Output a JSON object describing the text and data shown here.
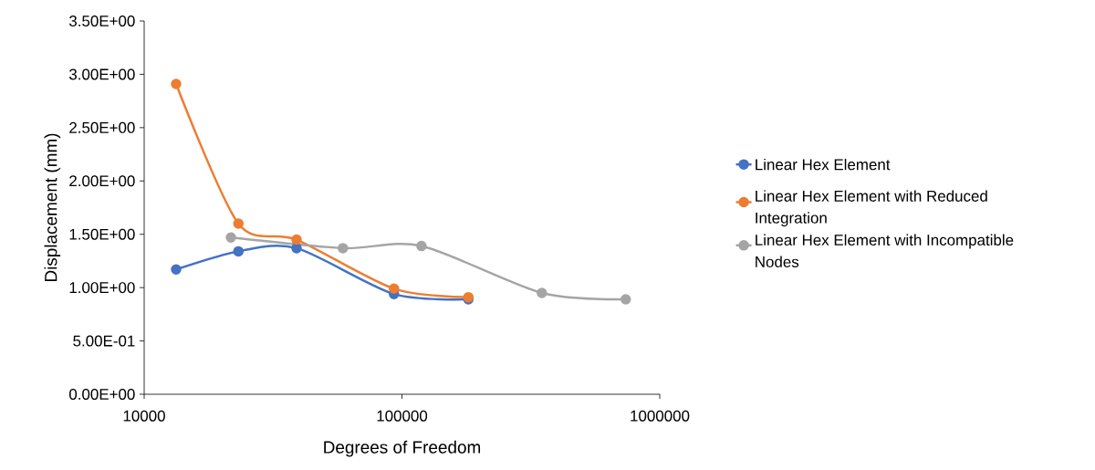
{
  "chart_data": {
    "type": "line",
    "xlabel": "Degrees of Freedom",
    "ylabel": "Displacement (mm)",
    "log": "x",
    "series": [
      {
        "name": "Linear Hex Element",
        "color": "#4472c4",
        "x": [
          13300,
          23200,
          39000,
          93100,
          181000
        ],
        "values": [
          1.17,
          1.34,
          1.37,
          0.94,
          0.89
        ]
      },
      {
        "name": "Linear Hex Element with Reduced Integration",
        "color": "#ed7d31",
        "x": [
          13300,
          23200,
          39000,
          93100,
          181000
        ],
        "values": [
          2.91,
          1.6,
          1.45,
          0.99,
          0.91
        ]
      },
      {
        "name": "Linear Hex Element with Incompatible Nodes",
        "color": "#a5a5a5",
        "x": [
          21700,
          59000,
          119000,
          349000,
          738000
        ],
        "values": [
          1.47,
          1.37,
          1.39,
          0.95,
          0.89
        ]
      }
    ],
    "xlim": [
      10000,
      1000000
    ],
    "xticks": [
      10000,
      100000,
      1000000
    ],
    "ylim": [
      0,
      3.5
    ],
    "yticks": [
      {
        "value": 0,
        "label": "0.00E+00"
      },
      {
        "value": 0.5,
        "label": "5.00E-01"
      },
      {
        "value": 1,
        "label": "1.00E+00"
      },
      {
        "value": 1.5,
        "label": "1.50E+00"
      },
      {
        "value": 2,
        "label": "2.00E+00"
      },
      {
        "value": 2.5,
        "label": "2.50E+00"
      },
      {
        "value": 3,
        "label": "3.00E+00"
      },
      {
        "value": 3.5,
        "label": "3.50E+00"
      }
    ],
    "grid": false,
    "legend": "right",
    "marker": "circle",
    "line_style": "solid"
  }
}
